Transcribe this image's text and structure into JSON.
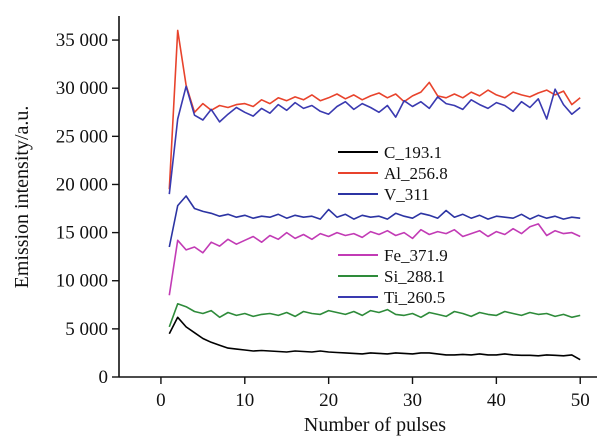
{
  "chart_data": {
    "type": "line",
    "xlabel": "Number of pulses",
    "ylabel": "Emission intensity/a.u.",
    "xlim": [
      -5,
      52
    ],
    "ylim": [
      0,
      37500
    ],
    "xticks": [
      0,
      10,
      20,
      30,
      40,
      50
    ],
    "xtick_labels": [
      "0",
      "10",
      "20",
      "30",
      "40",
      "50"
    ],
    "yticks": [
      0,
      5000,
      10000,
      15000,
      20000,
      25000,
      30000,
      35000
    ],
    "ytick_labels": [
      "0",
      "5 000",
      "10 000",
      "15 000",
      "20 000",
      "25 000",
      "30 000",
      "35 000"
    ],
    "grid": false,
    "x": [
      1,
      2,
      3,
      4,
      5,
      6,
      7,
      8,
      9,
      10,
      11,
      12,
      13,
      14,
      15,
      16,
      17,
      18,
      19,
      20,
      21,
      22,
      23,
      24,
      25,
      26,
      27,
      28,
      29,
      30,
      31,
      32,
      33,
      34,
      35,
      36,
      37,
      38,
      39,
      40,
      41,
      42,
      43,
      44,
      45,
      46,
      47,
      48,
      49,
      50
    ],
    "series": [
      {
        "name": "C_193.1",
        "color": "#000000",
        "values": [
          4500,
          6200,
          5200,
          4600,
          4000,
          3600,
          3300,
          3000,
          2900,
          2800,
          2700,
          2750,
          2700,
          2650,
          2600,
          2700,
          2650,
          2600,
          2700,
          2600,
          2550,
          2500,
          2450,
          2400,
          2500,
          2450,
          2400,
          2500,
          2450,
          2400,
          2500,
          2500,
          2400,
          2300,
          2300,
          2350,
          2300,
          2400,
          2300,
          2300,
          2400,
          2300,
          2250,
          2250,
          2200,
          2300,
          2250,
          2200,
          2300,
          1800
        ]
      },
      {
        "name": "Al_256.8",
        "color": "#e8432c",
        "values": [
          19500,
          36000,
          30300,
          27500,
          28400,
          27700,
          28200,
          28000,
          28300,
          28400,
          28100,
          28800,
          28400,
          29000,
          28700,
          29100,
          28800,
          29300,
          28700,
          29000,
          29400,
          28900,
          29300,
          28800,
          29200,
          29500,
          29000,
          29400,
          28600,
          29200,
          29600,
          30600,
          29200,
          29000,
          29400,
          29000,
          29600,
          29200,
          29800,
          29300,
          29000,
          29600,
          29300,
          29100,
          29500,
          29800,
          29300,
          29700,
          28300,
          29000
        ]
      },
      {
        "name": "V_311",
        "color": "#2c34a3",
        "values": [
          13500,
          17800,
          18800,
          17500,
          17200,
          17000,
          16700,
          16900,
          16600,
          16800,
          16500,
          16700,
          16600,
          16900,
          16500,
          16800,
          16600,
          16700,
          16400,
          17400,
          16600,
          16900,
          16400,
          16800,
          16600,
          16700,
          16400,
          17000,
          16700,
          16500,
          17000,
          16800,
          16500,
          17300,
          16600,
          16900,
          16500,
          16800,
          16400,
          16700,
          16600,
          16500,
          16900,
          16400,
          16800,
          16500,
          16700,
          16400,
          16600,
          16500
        ]
      },
      {
        "name": "Fe_371.9",
        "color": "#c23bb5",
        "values": [
          8500,
          14200,
          13200,
          13500,
          12900,
          14000,
          13600,
          14300,
          13800,
          14200,
          14600,
          14000,
          14700,
          14300,
          15000,
          14400,
          14800,
          14300,
          14900,
          14600,
          15000,
          14700,
          14900,
          14500,
          15100,
          14800,
          15200,
          14700,
          15000,
          14400,
          15300,
          14800,
          15100,
          14900,
          15300,
          14600,
          14900,
          15200,
          14600,
          15100,
          14800,
          15400,
          14900,
          15600,
          15900,
          14700,
          15200,
          14900,
          15000,
          14600
        ]
      },
      {
        "name": "Si_288.1",
        "color": "#2e8b3a",
        "values": [
          5200,
          7600,
          7300,
          6800,
          6600,
          6900,
          6200,
          6700,
          6400,
          6600,
          6300,
          6500,
          6600,
          6400,
          6700,
          6300,
          6800,
          6600,
          6500,
          6900,
          6700,
          6500,
          6800,
          6400,
          6900,
          6700,
          7000,
          6500,
          6400,
          6600,
          6200,
          6700,
          6500,
          6300,
          6800,
          6600,
          6300,
          6700,
          6500,
          6400,
          6800,
          6600,
          6400,
          6700,
          6500,
          6600,
          6300,
          6500,
          6200,
          6400
        ]
      },
      {
        "name": "Ti_260.5",
        "color": "#3a3ab0",
        "values": [
          19000,
          26800,
          30200,
          27200,
          26700,
          27800,
          26500,
          27300,
          28000,
          27500,
          27100,
          27900,
          27400,
          28300,
          27700,
          28500,
          27900,
          28200,
          27600,
          27300,
          28100,
          28600,
          27800,
          28400,
          28000,
          27500,
          28200,
          27000,
          28700,
          28100,
          28600,
          27900,
          29100,
          28400,
          28200,
          27800,
          28800,
          28300,
          27900,
          28500,
          28200,
          27600,
          28600,
          28000,
          28900,
          26800,
          29900,
          28300,
          27300,
          28000
        ]
      }
    ],
    "legend": [
      {
        "label": "C_193.1",
        "color": "#000000"
      },
      {
        "label": "Al_256.8",
        "color": "#e8432c"
      },
      {
        "label": "V_311",
        "color": "#2c34a3"
      },
      {
        "label": "Fe_371.9",
        "color": "#c23bb5"
      },
      {
        "label": "Si_288.1",
        "color": "#2e8b3a"
      },
      {
        "label": "Ti_260.5",
        "color": "#3a3ab0"
      }
    ]
  }
}
